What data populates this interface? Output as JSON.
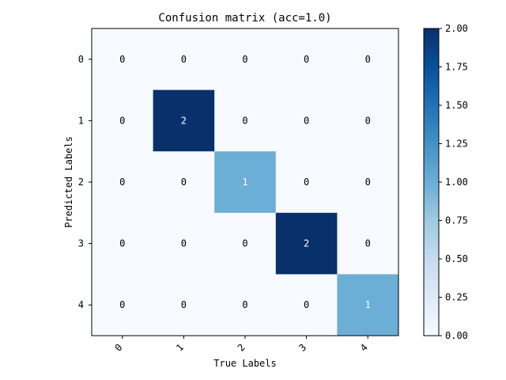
{
  "chart_data": {
    "type": "heatmap",
    "title": "Confusion matrix (acc=1.0)",
    "xlabel": "True Labels",
    "ylabel": "Predicted Labels",
    "x_tick_labels": [
      "0",
      "1",
      "2",
      "3",
      "4"
    ],
    "y_tick_labels": [
      "0",
      "1",
      "2",
      "3",
      "4"
    ],
    "matrix": [
      [
        0,
        0,
        0,
        0,
        0
      ],
      [
        0,
        2,
        0,
        0,
        0
      ],
      [
        0,
        0,
        1,
        0,
        0
      ],
      [
        0,
        0,
        0,
        2,
        0
      ],
      [
        0,
        0,
        0,
        0,
        1
      ]
    ],
    "cell_labels": [
      [
        "0",
        "0",
        "0",
        "0",
        "0"
      ],
      [
        "0",
        "2",
        "0",
        "0",
        "0"
      ],
      [
        "0",
        "0",
        "1",
        "0",
        "0"
      ],
      [
        "0",
        "0",
        "0",
        "2",
        "0"
      ],
      [
        "0",
        "0",
        "0",
        "0",
        "1"
      ]
    ],
    "colormap": "Blues",
    "color_low": "#f7fbff",
    "color_mid": "#6baed6",
    "color_high": "#08306b",
    "value_range": [
      0,
      2
    ],
    "colorbar_ticks": [
      "0.00",
      "0.25",
      "0.50",
      "0.75",
      "1.00",
      "1.25",
      "1.50",
      "1.75",
      "2.00"
    ],
    "x_tick_rotation": 45,
    "grid": false
  }
}
